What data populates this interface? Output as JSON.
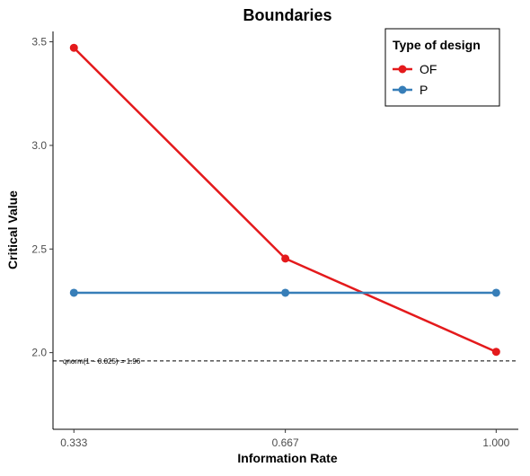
{
  "chart_data": {
    "type": "line",
    "title": "Boundaries",
    "xlabel": "Information Rate",
    "ylabel": "Critical Value",
    "x": [
      0.333,
      0.667,
      1.0
    ],
    "x_tick_labels": [
      "0.333",
      "0.667",
      "1.000"
    ],
    "y_ticks": [
      2.0,
      2.5,
      3.0,
      3.5
    ],
    "y_tick_labels": [
      "2.0",
      "2.5",
      "3.0",
      "3.5"
    ],
    "xlim": [
      0.3,
      1.035
    ],
    "ylim": [
      1.63,
      3.55
    ],
    "grid": false,
    "legend": {
      "title": "Type of design",
      "position": "top-right"
    },
    "series": [
      {
        "name": "OF",
        "color": "#e41a1c",
        "values": [
          3.471,
          2.454,
          2.004
        ]
      },
      {
        "name": "P",
        "color": "#377eb8",
        "values": [
          2.289,
          2.289,
          2.289
        ]
      }
    ],
    "reference_line": {
      "y": 1.96,
      "style": "dashed",
      "label": "qnorm(1 − 0.025) = 1.96"
    }
  }
}
